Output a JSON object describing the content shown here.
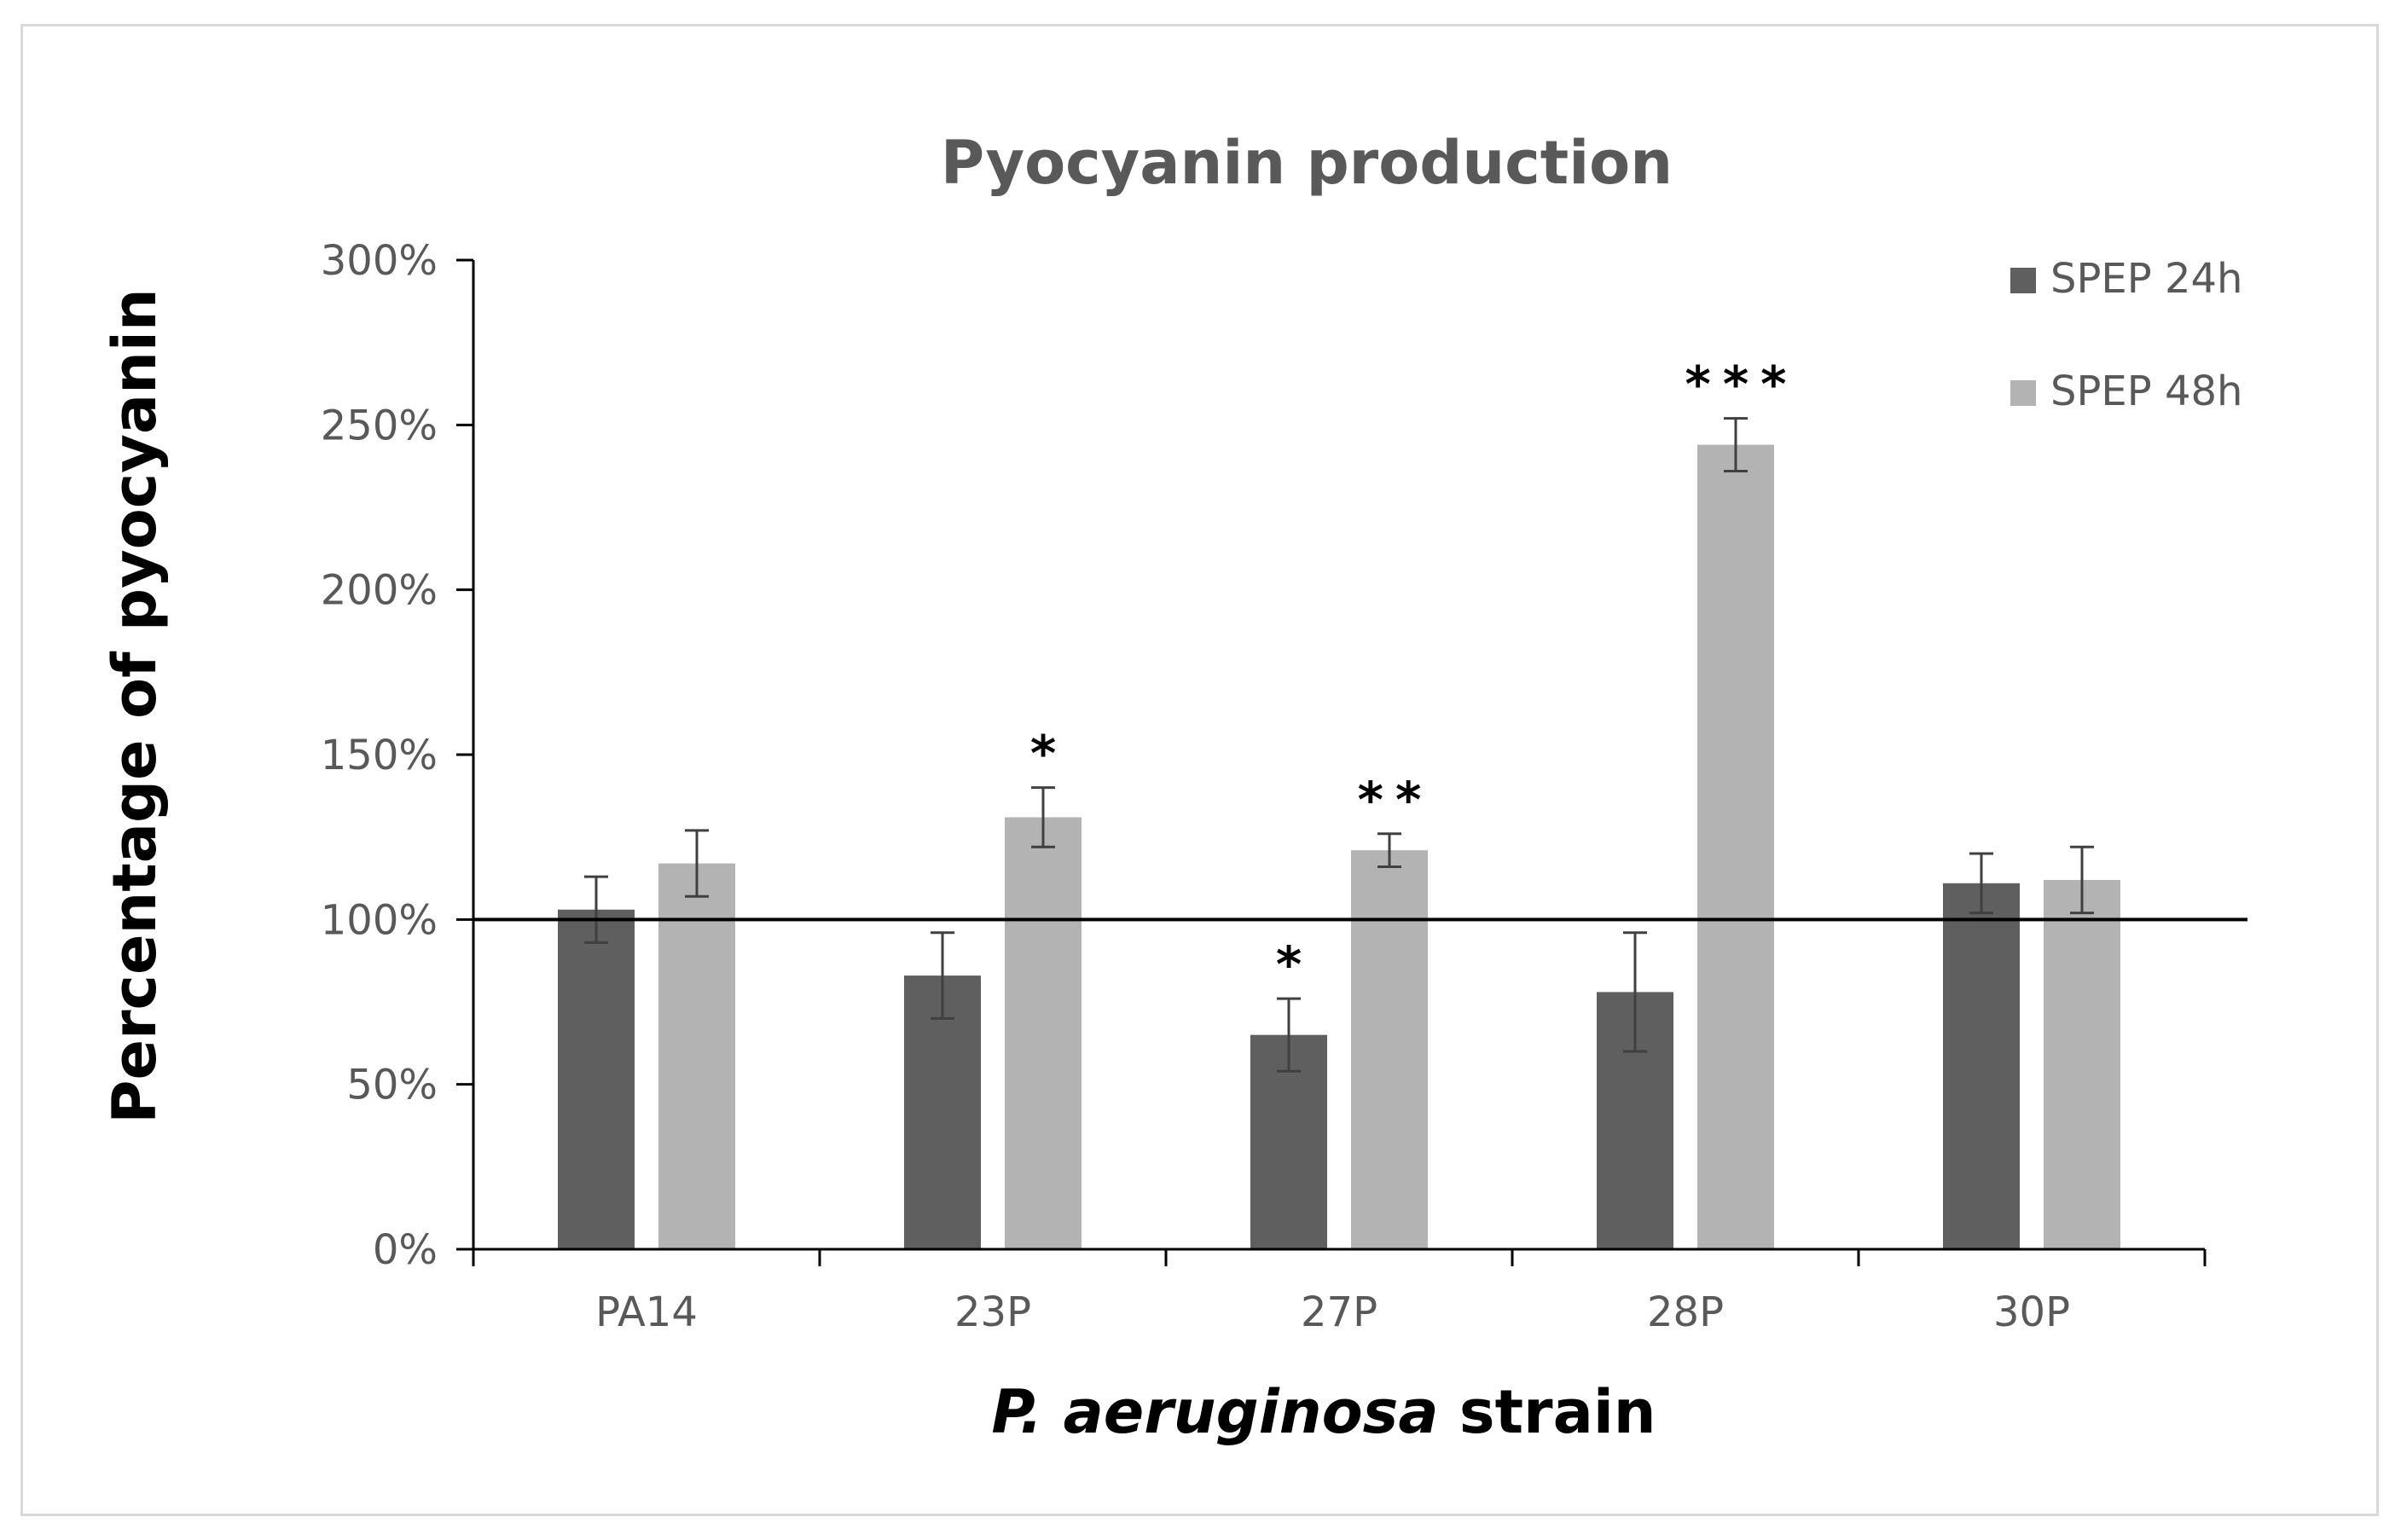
{
  "chart_data": {
    "type": "bar",
    "title": "Pyocyanin production",
    "xlabel_italic": "P. aeruginosa",
    "xlabel_rest": " strain",
    "ylabel": "Percentage of pyocyanin",
    "categories": [
      "PA14",
      "23P",
      "27P",
      "28P",
      "30P"
    ],
    "ylim": [
      0,
      300
    ],
    "yticks": [
      0,
      50,
      100,
      150,
      200,
      250,
      300
    ],
    "ytick_labels": [
      "0%",
      "50%",
      "100%",
      "150%",
      "200%",
      "250%",
      "300%"
    ],
    "reference_line": 100,
    "series": [
      {
        "name": "SPEP 24h",
        "color": "#5f5f5f",
        "values": [
          103,
          83,
          65,
          78,
          111
        ],
        "errors": [
          10,
          13,
          11,
          18,
          9
        ],
        "significance": [
          "",
          "",
          "*",
          "",
          ""
        ]
      },
      {
        "name": "SPEP 48h",
        "color": "#b3b3b3",
        "values": [
          117,
          131,
          121,
          244,
          112
        ],
        "errors": [
          10,
          9,
          5,
          8,
          10
        ],
        "significance": [
          "",
          "*",
          "**",
          "***",
          ""
        ]
      }
    ],
    "legend_position": "top-right"
  },
  "colors": {
    "axis": "#000000",
    "error_bar": "#404040"
  }
}
